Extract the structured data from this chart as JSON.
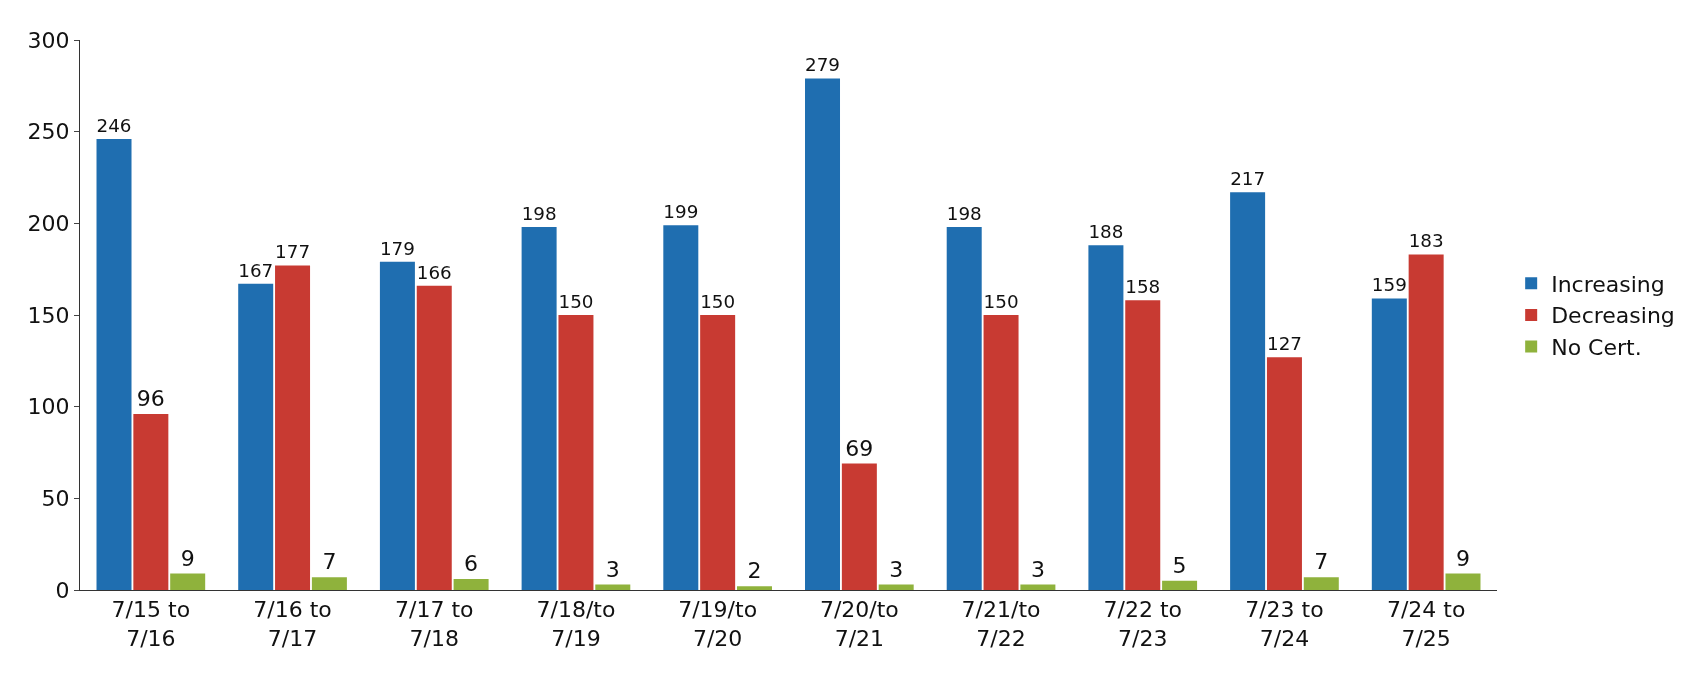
{
  "chart_data": {
    "type": "bar",
    "categories": [
      "7/15 to 7/16",
      "7/16 to 7/17",
      "7/17 to 7/18",
      "7/18/to 7/19",
      "7/19/to 7/20",
      "7/20/to 7/21",
      "7/21/to 7/22",
      "7/22 to 7/23",
      "7/23 to 7/24",
      "7/24 to 7/25"
    ],
    "series": [
      {
        "name": "Increasing",
        "color": "#1f6eb0",
        "values": [
          246,
          167,
          179,
          198,
          199,
          279,
          198,
          188,
          217,
          159
        ]
      },
      {
        "name": "Decreasing",
        "color": "#c83a32",
        "values": [
          96,
          177,
          166,
          150,
          150,
          69,
          150,
          158,
          127,
          183
        ]
      },
      {
        "name": "No Cert.",
        "color": "#8fb23c",
        "values": [
          9,
          7,
          6,
          3,
          2,
          3,
          3,
          5,
          7,
          9
        ]
      }
    ],
    "ylim": [
      0,
      300
    ],
    "yticks": [
      0,
      50,
      100,
      150,
      200,
      250,
      300
    ],
    "grid": false,
    "legend": "right",
    "data_labels": true
  }
}
